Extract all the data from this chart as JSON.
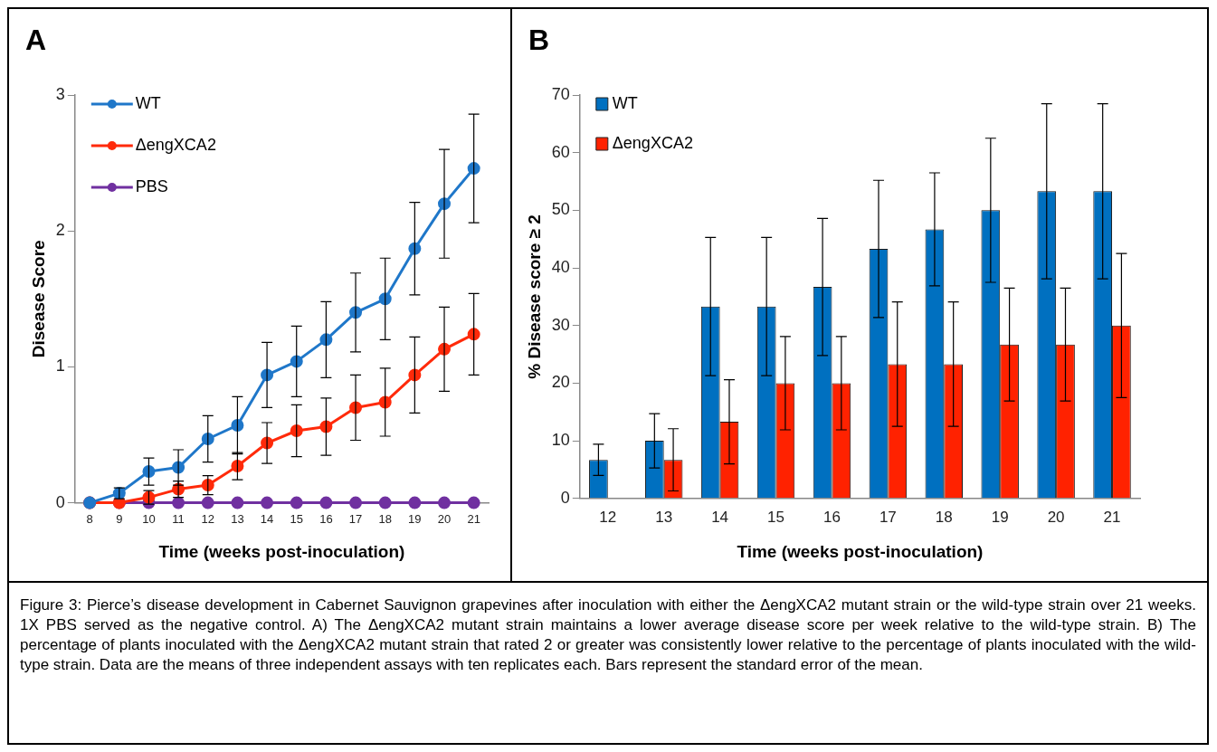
{
  "chart_data": [
    {
      "type": "line",
      "title": "A",
      "xlabel": "Time (weeks post-inoculation)",
      "ylabel": "Disease Score",
      "categories": [
        "8",
        "9",
        "10",
        "11",
        "12",
        "13",
        "14",
        "15",
        "16",
        "17",
        "18",
        "19",
        "20",
        "21"
      ],
      "series": [
        {
          "name": "WT",
          "color": "#1f77c9",
          "values": [
            0,
            0.07,
            0.23,
            0.26,
            0.47,
            0.57,
            0.94,
            1.04,
            1.2,
            1.4,
            1.5,
            1.87,
            2.2,
            2.46
          ],
          "errors": [
            null,
            0.04,
            0.1,
            0.13,
            0.17,
            0.21,
            0.24,
            0.26,
            0.28,
            0.29,
            0.3,
            0.34,
            0.4,
            0.4
          ]
        },
        {
          "name": "ΔengXCA2",
          "color": "#ff2a0a",
          "values": [
            0,
            0,
            0.04,
            0.1,
            0.13,
            0.27,
            0.44,
            0.53,
            0.56,
            0.7,
            0.74,
            0.94,
            1.13,
            1.24
          ],
          "errors": [
            null,
            null,
            0.05,
            0.06,
            0.07,
            0.1,
            0.15,
            0.19,
            0.21,
            0.24,
            0.25,
            0.28,
            0.31,
            0.3
          ]
        },
        {
          "name": "PBS",
          "color": "#7030a0",
          "values": [
            0,
            0,
            0,
            0,
            0,
            0,
            0,
            0,
            0,
            0,
            0,
            0,
            0,
            0
          ]
        }
      ],
      "ylim": [
        0,
        3
      ],
      "yticks": [
        0,
        1,
        2,
        3
      ],
      "grid": false,
      "legend": "top left",
      "marker": "circle",
      "annotations": [
        "Figure 3: Pierce’s disease development in Cabernet Sauvignon grapevines after inoculation with either the ΔengXCA2 mutant strain or the wild-type strain over 21 weeks. 1X PBS served as the negative control. A) The ΔengXCA2 mutant strain maintains a lower average disease score per week relative to the wild-type  strain. B) The percentage of plants inoculated with the ΔengXCA2 mutant strain that rated 2 or greater was consistently lower relative to the percentage of plants inoculated with the wild-type strain. Data are the means of three independent assays with ten replicates each. Bars represent the standard error of the mean."
      ]
    },
    {
      "type": "bar",
      "title": "B",
      "xlabel": "Time (weeks post-inoculation)",
      "ylabel": "% Disease score ≥ 2",
      "categories": [
        "12",
        "13",
        "14",
        "15",
        "16",
        "17",
        "18",
        "19",
        "20",
        "21"
      ],
      "series": [
        {
          "name": "WT",
          "color": "#0070c0",
          "values": [
            6.7,
            10,
            33.3,
            33.3,
            36.7,
            43.3,
            46.7,
            50,
            53.3,
            53.3
          ],
          "errors": [
            2.7,
            4.7,
            12,
            12,
            11.9,
            11.9,
            9.8,
            12.5,
            15.2,
            15.2
          ]
        },
        {
          "name": "ΔengXCA2",
          "color": "#ff2200",
          "values": [
            0,
            6.7,
            13.3,
            20,
            20,
            23.3,
            23.3,
            26.7,
            26.7,
            30
          ],
          "errors": [
            null,
            5.4,
            7.3,
            8.1,
            8.1,
            10.8,
            10.8,
            9.8,
            9.8,
            12.5
          ]
        }
      ],
      "ylim": [
        0,
        70
      ],
      "yticks": [
        0,
        10,
        20,
        30,
        40,
        50,
        60,
        70
      ],
      "grid": false,
      "legend": "top left"
    }
  ]
}
